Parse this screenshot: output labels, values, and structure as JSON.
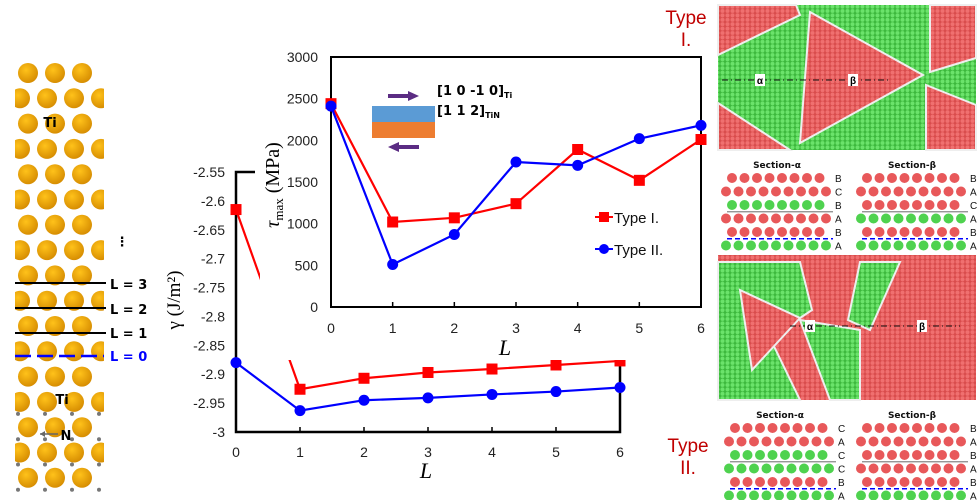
{
  "structure_panel": {
    "atom_labels": [
      "Ti",
      "Ti",
      "N"
    ],
    "layer_labels": [
      "L = 3",
      "L = 2",
      "L = 1",
      "L = 0"
    ],
    "ellipsis": "⋮",
    "colors": {
      "ti": "#f5a800",
      "n": "#777777",
      "interface": "#0000ff"
    }
  },
  "chart_data": [
    {
      "type": "line",
      "xlabel": "L",
      "ylabel": "γ (J/m²)",
      "x": [
        0,
        1,
        2,
        3,
        4,
        5,
        6
      ],
      "xlim": [
        0,
        6
      ],
      "ylim": [
        -3,
        -2.55
      ],
      "xticks": [
        "0",
        "1",
        "2",
        "3",
        "4",
        "5",
        "6"
      ],
      "yticks": [
        "-2.55",
        "-2.6",
        "-2.65",
        "-2.7",
        "-2.75",
        "-2.8",
        "-2.85",
        "-2.9",
        "-2.95",
        "-3"
      ],
      "grid": false,
      "series": [
        {
          "name": "Type I.",
          "color": "#ff0000",
          "marker": "square",
          "values": [
            -2.615,
            -2.926,
            -2.907,
            -2.897,
            -2.891,
            -2.884,
            -2.877
          ]
        },
        {
          "name": "Type II.",
          "color": "#0000ff",
          "marker": "circle",
          "values": [
            -2.88,
            -2.963,
            -2.945,
            -2.941,
            -2.935,
            -2.93,
            -2.923
          ]
        }
      ]
    },
    {
      "type": "line",
      "inset": true,
      "xlabel": "L",
      "ylabel": "τmax (MPa)",
      "ylabel_main": "τ",
      "ylabel_sub": "max",
      "ylabel_unit": " (MPa)",
      "x": [
        0,
        1,
        2,
        3,
        4,
        5,
        6
      ],
      "xlim": [
        0,
        6
      ],
      "ylim": [
        0,
        3000
      ],
      "xticks": [
        "0",
        "1",
        "2",
        "3",
        "4",
        "5",
        "6"
      ],
      "yticks": [
        "0",
        "500",
        "1000",
        "1500",
        "2000",
        "2500",
        "3000"
      ],
      "grid": false,
      "legend": {
        "placement": "right",
        "entries": [
          "Type I.",
          "Type II."
        ]
      },
      "annotation": {
        "dir1": "[1 0 -1 0]",
        "dir1_sub": "Ti",
        "dir2": "[1 1 2]",
        "dir2_sub": "TiN",
        "colors": {
          "top": "#5b9bd5",
          "bottom": "#ed7d31",
          "arrow": "#5b2c83"
        }
      },
      "series": [
        {
          "name": "Type I.",
          "color": "#ff0000",
          "marker": "square",
          "values": [
            2440,
            1020,
            1070,
            1240,
            1890,
            1520,
            2010
          ]
        },
        {
          "name": "Type II.",
          "color": "#0000ff",
          "marker": "circle",
          "values": [
            2410,
            510,
            870,
            1740,
            1700,
            2020,
            2180
          ]
        }
      ]
    }
  ],
  "right_panel": {
    "type1": {
      "label_line1": "Type",
      "label_line2": "I.",
      "map_markers": [
        "α",
        "β"
      ],
      "sections": [
        {
          "title": "Section-α",
          "rows": [
            {
              "letter": "B",
              "color": "red"
            },
            {
              "letter": "C",
              "color": "red"
            },
            {
              "letter": "B",
              "color": "green"
            },
            {
              "letter": "A",
              "color": "red"
            },
            {
              "letter": "B",
              "color": "red"
            },
            {
              "letter": "A",
              "color": "green"
            }
          ]
        },
        {
          "title": "Section-β",
          "rows": [
            {
              "letter": "B",
              "color": "red"
            },
            {
              "letter": "A",
              "color": "red"
            },
            {
              "letter": "C",
              "color": "red"
            },
            {
              "letter": "A",
              "color": "green"
            },
            {
              "letter": "B",
              "color": "red"
            },
            {
              "letter": "A",
              "color": "green"
            }
          ]
        }
      ]
    },
    "type2": {
      "label_line1": "Type",
      "label_line2": "II.",
      "map_markers": [
        "α",
        "β"
      ],
      "sections": [
        {
          "title": "Section-α",
          "rows": [
            {
              "letter": "C",
              "color": "red"
            },
            {
              "letter": "A",
              "color": "red"
            },
            {
              "letter": "C",
              "color": "green"
            },
            {
              "letter": "C",
              "color": "green"
            },
            {
              "letter": "B",
              "color": "red"
            },
            {
              "letter": "A",
              "color": "green"
            }
          ]
        },
        {
          "title": "Section-β",
          "rows": [
            {
              "letter": "B",
              "color": "red"
            },
            {
              "letter": "A",
              "color": "red"
            },
            {
              "letter": "B",
              "color": "red"
            },
            {
              "letter": "A",
              "color": "red"
            },
            {
              "letter": "B",
              "color": "red"
            },
            {
              "letter": "A",
              "color": "green"
            }
          ]
        }
      ]
    },
    "colors": {
      "red": "#e8585a",
      "green": "#4fd24f",
      "boundary": "#dddddd",
      "defect": "#5555dd"
    }
  }
}
